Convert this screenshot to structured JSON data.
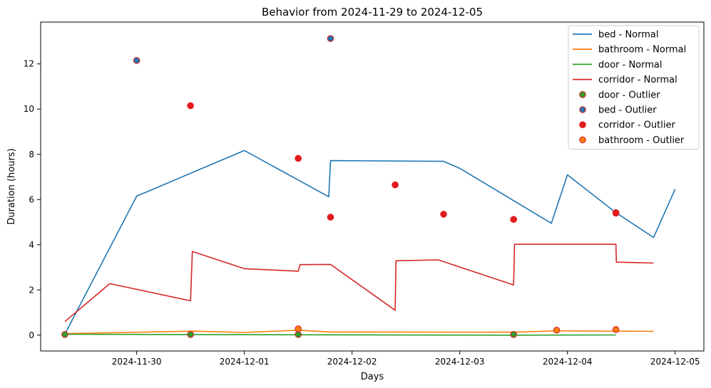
{
  "chart_data": {
    "type": "line",
    "title": "Behavior from 2024-11-29 to 2024-12-05",
    "xlabel": "Days",
    "ylabel": "Duration (hours)",
    "x_ticks": [
      "2024-11-30",
      "2024-12-01",
      "2024-12-02",
      "2024-12-03",
      "2024-12-04",
      "2024-12-05"
    ],
    "y_ticks": [
      0,
      2,
      4,
      6,
      8,
      10,
      12
    ],
    "xlim": [
      "2024-11-29T02:36",
      "2024-12-05T06:24"
    ],
    "ylim": [
      -0.7,
      13.85
    ],
    "grid": false,
    "legend_position": "top-right",
    "series": [
      {
        "name": "bed - Normal",
        "kind": "line",
        "color": "#1f77b4",
        "points": [
          {
            "x": "2024-11-29T08:00",
            "y": 0.05
          },
          {
            "x": "2024-11-30T00:00",
            "y": 6.15
          },
          {
            "x": "2024-12-01T00:00",
            "y": 8.17
          },
          {
            "x": "2024-12-01T18:48",
            "y": 6.12
          },
          {
            "x": "2024-12-01T19:12",
            "y": 7.72
          },
          {
            "x": "2024-12-02T20:24",
            "y": 7.69
          },
          {
            "x": "2024-12-03T00:00",
            "y": 7.38
          },
          {
            "x": "2024-12-03T20:24",
            "y": 4.95
          },
          {
            "x": "2024-12-04T00:00",
            "y": 7.09
          },
          {
            "x": "2024-12-04T10:48",
            "y": 5.42
          },
          {
            "x": "2024-12-04T19:12",
            "y": 4.32
          },
          {
            "x": "2024-12-05T00:00",
            "y": 6.46
          }
        ]
      },
      {
        "name": "bathroom - Normal",
        "kind": "line",
        "color": "#ff7f0e",
        "points": [
          {
            "x": "2024-11-29T08:00",
            "y": 0.07
          },
          {
            "x": "2024-11-30T12:24",
            "y": 0.18
          },
          {
            "x": "2024-12-01T00:00",
            "y": 0.12
          },
          {
            "x": "2024-12-01T12:00",
            "y": 0.22
          },
          {
            "x": "2024-12-01T19:12",
            "y": 0.14
          },
          {
            "x": "2024-12-03T12:00",
            "y": 0.13
          },
          {
            "x": "2024-12-03T21:36",
            "y": 0.19
          },
          {
            "x": "2024-12-04T19:12",
            "y": 0.17
          }
        ]
      },
      {
        "name": "door - Normal",
        "kind": "line",
        "color": "#2ca02c",
        "points": [
          {
            "x": "2024-11-29T08:00",
            "y": 0.04
          },
          {
            "x": "2024-12-01T00:00",
            "y": 0.02
          },
          {
            "x": "2024-12-03T12:00",
            "y": 0.0
          },
          {
            "x": "2024-12-04T10:48",
            "y": 0.01
          }
        ]
      },
      {
        "name": "corridor - Normal",
        "kind": "line",
        "color": "#d62728",
        "points": [
          {
            "x": "2024-11-29T08:00",
            "y": 0.6
          },
          {
            "x": "2024-11-29T18:00",
            "y": 2.28
          },
          {
            "x": "2024-11-30T12:00",
            "y": 1.52
          },
          {
            "x": "2024-11-30T12:24",
            "y": 3.7
          },
          {
            "x": "2024-12-01T00:00",
            "y": 2.94
          },
          {
            "x": "2024-12-01T12:00",
            "y": 2.83
          },
          {
            "x": "2024-12-01T12:24",
            "y": 3.12
          },
          {
            "x": "2024-12-01T19:12",
            "y": 3.13
          },
          {
            "x": "2024-12-02T09:36",
            "y": 1.1
          },
          {
            "x": "2024-12-02T09:48",
            "y": 3.29
          },
          {
            "x": "2024-12-02T19:12",
            "y": 3.33
          },
          {
            "x": "2024-12-03T12:00",
            "y": 2.22
          },
          {
            "x": "2024-12-03T12:12",
            "y": 4.02
          },
          {
            "x": "2024-12-04T10:48",
            "y": 4.02
          },
          {
            "x": "2024-12-04T10:54",
            "y": 3.23
          },
          {
            "x": "2024-12-04T19:12",
            "y": 3.19
          }
        ]
      },
      {
        "name": "door - Outlier",
        "kind": "scatter",
        "color": "#2ca02c",
        "edge": "#d62728",
        "points": [
          {
            "x": "2024-11-29T08:00",
            "y": 0.03
          },
          {
            "x": "2024-11-30T12:00",
            "y": 0.03
          },
          {
            "x": "2024-12-01T12:00",
            "y": 0.03
          },
          {
            "x": "2024-12-03T12:00",
            "y": 0.03
          }
        ]
      },
      {
        "name": "bed - Outlier",
        "kind": "scatter",
        "color": "#1f77b4",
        "edge": "#d62728",
        "points": [
          {
            "x": "2024-11-30T00:00",
            "y": 12.15
          },
          {
            "x": "2024-12-01T19:12",
            "y": 13.12
          },
          {
            "x": "2024-12-04T10:48",
            "y": 5.42
          }
        ]
      },
      {
        "name": "corridor - Outlier",
        "kind": "scatter",
        "color": "#e31a1c",
        "edge": "#e31a1c",
        "points": [
          {
            "x": "2024-11-30T12:00",
            "y": 10.15
          },
          {
            "x": "2024-12-01T12:00",
            "y": 7.82
          },
          {
            "x": "2024-12-01T19:12",
            "y": 5.22
          },
          {
            "x": "2024-12-02T09:36",
            "y": 6.65
          },
          {
            "x": "2024-12-02T20:24",
            "y": 5.35
          },
          {
            "x": "2024-12-03T12:00",
            "y": 5.12
          },
          {
            "x": "2024-12-04T10:48",
            "y": 5.4
          }
        ]
      },
      {
        "name": "bathroom - Outlier",
        "kind": "scatter",
        "color": "#ff7f0e",
        "edge": "#d62728",
        "points": [
          {
            "x": "2024-12-01T12:00",
            "y": 0.28
          },
          {
            "x": "2024-12-03T21:36",
            "y": 0.22
          },
          {
            "x": "2024-12-04T10:48",
            "y": 0.25
          }
        ]
      }
    ]
  }
}
